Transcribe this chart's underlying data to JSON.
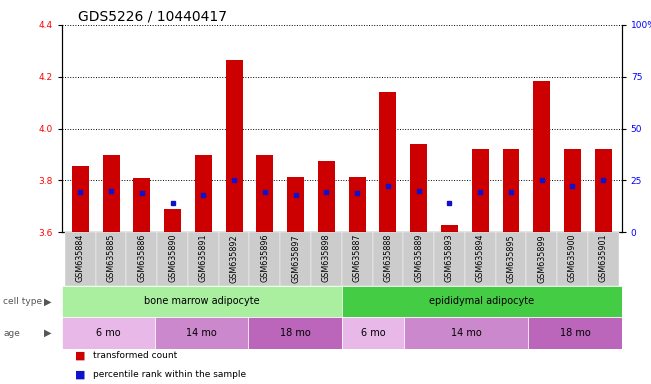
{
  "title": "GDS5226 / 10440417",
  "samples": [
    "GSM635884",
    "GSM635885",
    "GSM635886",
    "GSM635890",
    "GSM635891",
    "GSM635892",
    "GSM635896",
    "GSM635897",
    "GSM635898",
    "GSM635887",
    "GSM635888",
    "GSM635889",
    "GSM635893",
    "GSM635894",
    "GSM635895",
    "GSM635899",
    "GSM635900",
    "GSM635901"
  ],
  "bar_tops": [
    3.855,
    3.9,
    3.81,
    3.69,
    3.9,
    4.265,
    3.9,
    3.815,
    3.875,
    3.815,
    4.14,
    3.94,
    3.63,
    3.92,
    3.92,
    4.185,
    3.92,
    3.92
  ],
  "bar_bottom": 3.6,
  "percentile_y": [
    3.755,
    3.76,
    3.75,
    3.715,
    3.745,
    3.8,
    3.755,
    3.745,
    3.755,
    3.75,
    3.78,
    3.76,
    3.715,
    3.755,
    3.755,
    3.8,
    3.78,
    3.8
  ],
  "ylim": [
    3.6,
    4.4
  ],
  "yticks_left": [
    3.6,
    3.8,
    4.0,
    4.2,
    4.4
  ],
  "yticks_right_pct": [
    0,
    25,
    50,
    75,
    100
  ],
  "bar_color": "#cc0000",
  "percentile_color": "#1111cc",
  "cell_type_groups": [
    {
      "label": "bone marrow adipocyte",
      "start": 0,
      "end": 9,
      "color": "#aaeea0"
    },
    {
      "label": "epididymal adipocyte",
      "start": 9,
      "end": 18,
      "color": "#44cc44"
    }
  ],
  "age_groups": [
    {
      "label": "6 mo",
      "start": 0,
      "end": 3,
      "color": "#e8b8e8"
    },
    {
      "label": "14 mo",
      "start": 3,
      "end": 6,
      "color": "#cc88cc"
    },
    {
      "label": "18 mo",
      "start": 6,
      "end": 9,
      "color": "#bb66bb"
    },
    {
      "label": "6 mo",
      "start": 9,
      "end": 11,
      "color": "#e8b8e8"
    },
    {
      "label": "14 mo",
      "start": 11,
      "end": 15,
      "color": "#cc88cc"
    },
    {
      "label": "18 mo",
      "start": 15,
      "end": 18,
      "color": "#bb66bb"
    }
  ],
  "sample_box_color": "#cccccc",
  "legend_items": [
    {
      "label": "transformed count",
      "color": "#cc0000"
    },
    {
      "label": "percentile rank within the sample",
      "color": "#1111cc"
    }
  ],
  "title_fontsize": 10,
  "tick_fontsize": 6.5,
  "annot_fontsize": 7,
  "sample_fontsize": 5.8
}
